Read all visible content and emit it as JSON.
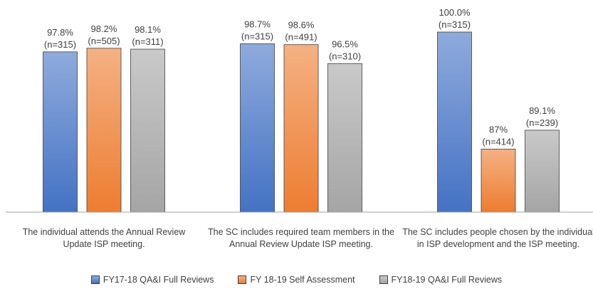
{
  "chart_data": {
    "type": "bar",
    "categories": [
      "The individual attends the Annual Review Update ISP meeting.",
      "The SC includes required team members in the Annual Review Update ISP meeting.",
      "The SC includes people chosen by the individual in ISP development and the ISP meeting."
    ],
    "series": [
      {
        "name": "FY17-18 QA&I Full Reviews",
        "color": "#4472c4",
        "values": [
          97.8,
          98.7,
          100.0
        ],
        "value_labels": [
          "97.8%",
          "98.7%",
          "100.0%"
        ],
        "n_labels": [
          "(n=315)",
          "(n=315)",
          "(n=315)"
        ]
      },
      {
        "name": "FY 18-19 Self Assessment",
        "color": "#ed7d31",
        "values": [
          98.2,
          98.6,
          87
        ],
        "value_labels": [
          "98.2%",
          "98.6%",
          "87%"
        ],
        "n_labels": [
          "(n=505)",
          "(n=491)",
          "(n=414)"
        ]
      },
      {
        "name": "FY18-19 QA&I Full Reviews",
        "color": "#a5a5a5",
        "values": [
          98.1,
          96.5,
          89.1
        ],
        "value_labels": [
          "98.1%",
          "96.5%",
          "89.1%"
        ],
        "n_labels": [
          "(n=311)",
          "(n=310)",
          "(n=239)"
        ]
      }
    ],
    "ylim": [
      80,
      100
    ],
    "legend": "bottom"
  }
}
